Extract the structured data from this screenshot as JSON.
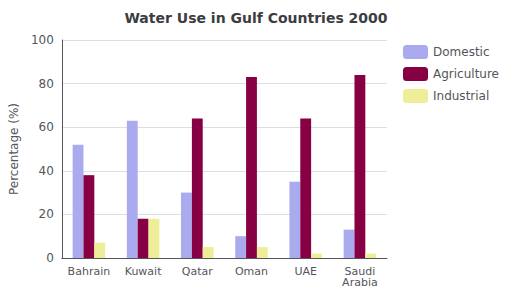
{
  "chart_data": {
    "type": "bar",
    "title": "Water Use in Gulf Countries 2000",
    "ylabel": "Percentage (%)",
    "categories": [
      "Bahrain",
      "Kuwait",
      "Qatar",
      "Oman",
      "UAE",
      "Saudi\nArabia"
    ],
    "series": [
      {
        "name": "Domestic",
        "color": "#aaaaee",
        "values": [
          52,
          63,
          30,
          10,
          35,
          13
        ]
      },
      {
        "name": "Agriculture",
        "color": "#880044",
        "values": [
          38,
          18,
          64,
          83,
          64,
          84
        ]
      },
      {
        "name": "Industrial",
        "color": "#eeee99",
        "values": [
          7,
          18,
          5,
          5,
          2,
          2
        ]
      }
    ],
    "ylim": [
      0,
      100
    ],
    "yticks": [
      0,
      20,
      40,
      60,
      80,
      100
    ],
    "grid": true,
    "legend": "upper right"
  }
}
